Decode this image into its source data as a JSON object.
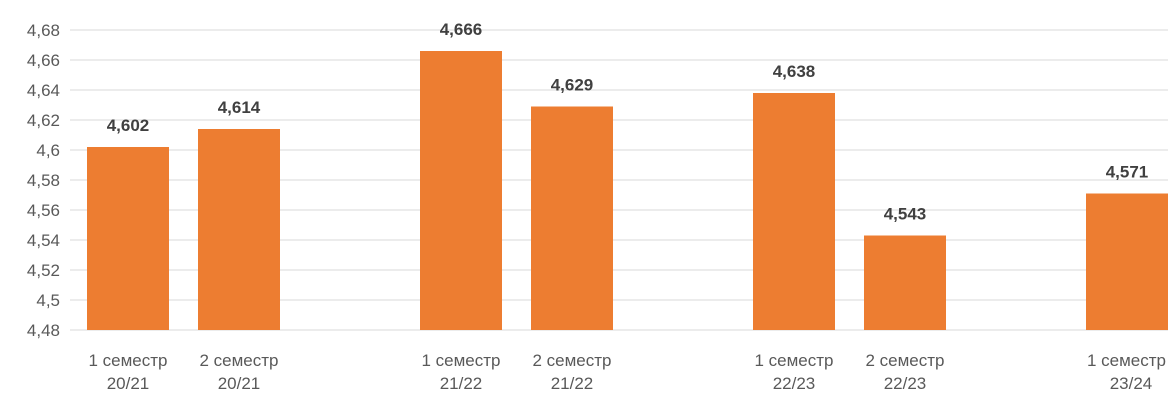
{
  "chart_data": {
    "type": "bar",
    "categories": [
      [
        "1 семестр",
        "20/21"
      ],
      [
        "2 семестр",
        "20/21"
      ],
      [
        "",
        ""
      ],
      [
        "1 семестр",
        "21/22"
      ],
      [
        "2 семестр",
        "21/22"
      ],
      [
        "",
        ""
      ],
      [
        "1 семестр",
        "22/23"
      ],
      [
        "2 семестр",
        "22/23"
      ],
      [
        "",
        ""
      ],
      [
        "1 семестр",
        "23/24"
      ]
    ],
    "values": [
      4.602,
      4.614,
      null,
      4.666,
      4.629,
      null,
      4.638,
      4.543,
      null,
      4.571
    ],
    "data_labels": [
      "4,602",
      "4,614",
      "",
      "4,666",
      "4,629",
      "",
      "4,638",
      "4,543",
      "",
      "4,571"
    ],
    "ylim": [
      4.48,
      4.68
    ],
    "yticks": [
      4.48,
      4.5,
      4.52,
      4.54,
      4.56,
      4.58,
      4.6,
      4.62,
      4.64,
      4.66,
      4.68
    ],
    "ytick_labels": [
      "4,48",
      "4,5",
      "4,52",
      "4,54",
      "4,56",
      "4,58",
      "4,6",
      "4,62",
      "4,64",
      "4,66",
      "4,68"
    ],
    "grid": true,
    "bar_color": "#ED7D31",
    "grid_color": "#D9D9D9",
    "title": "",
    "xlabel": "",
    "ylabel": ""
  }
}
